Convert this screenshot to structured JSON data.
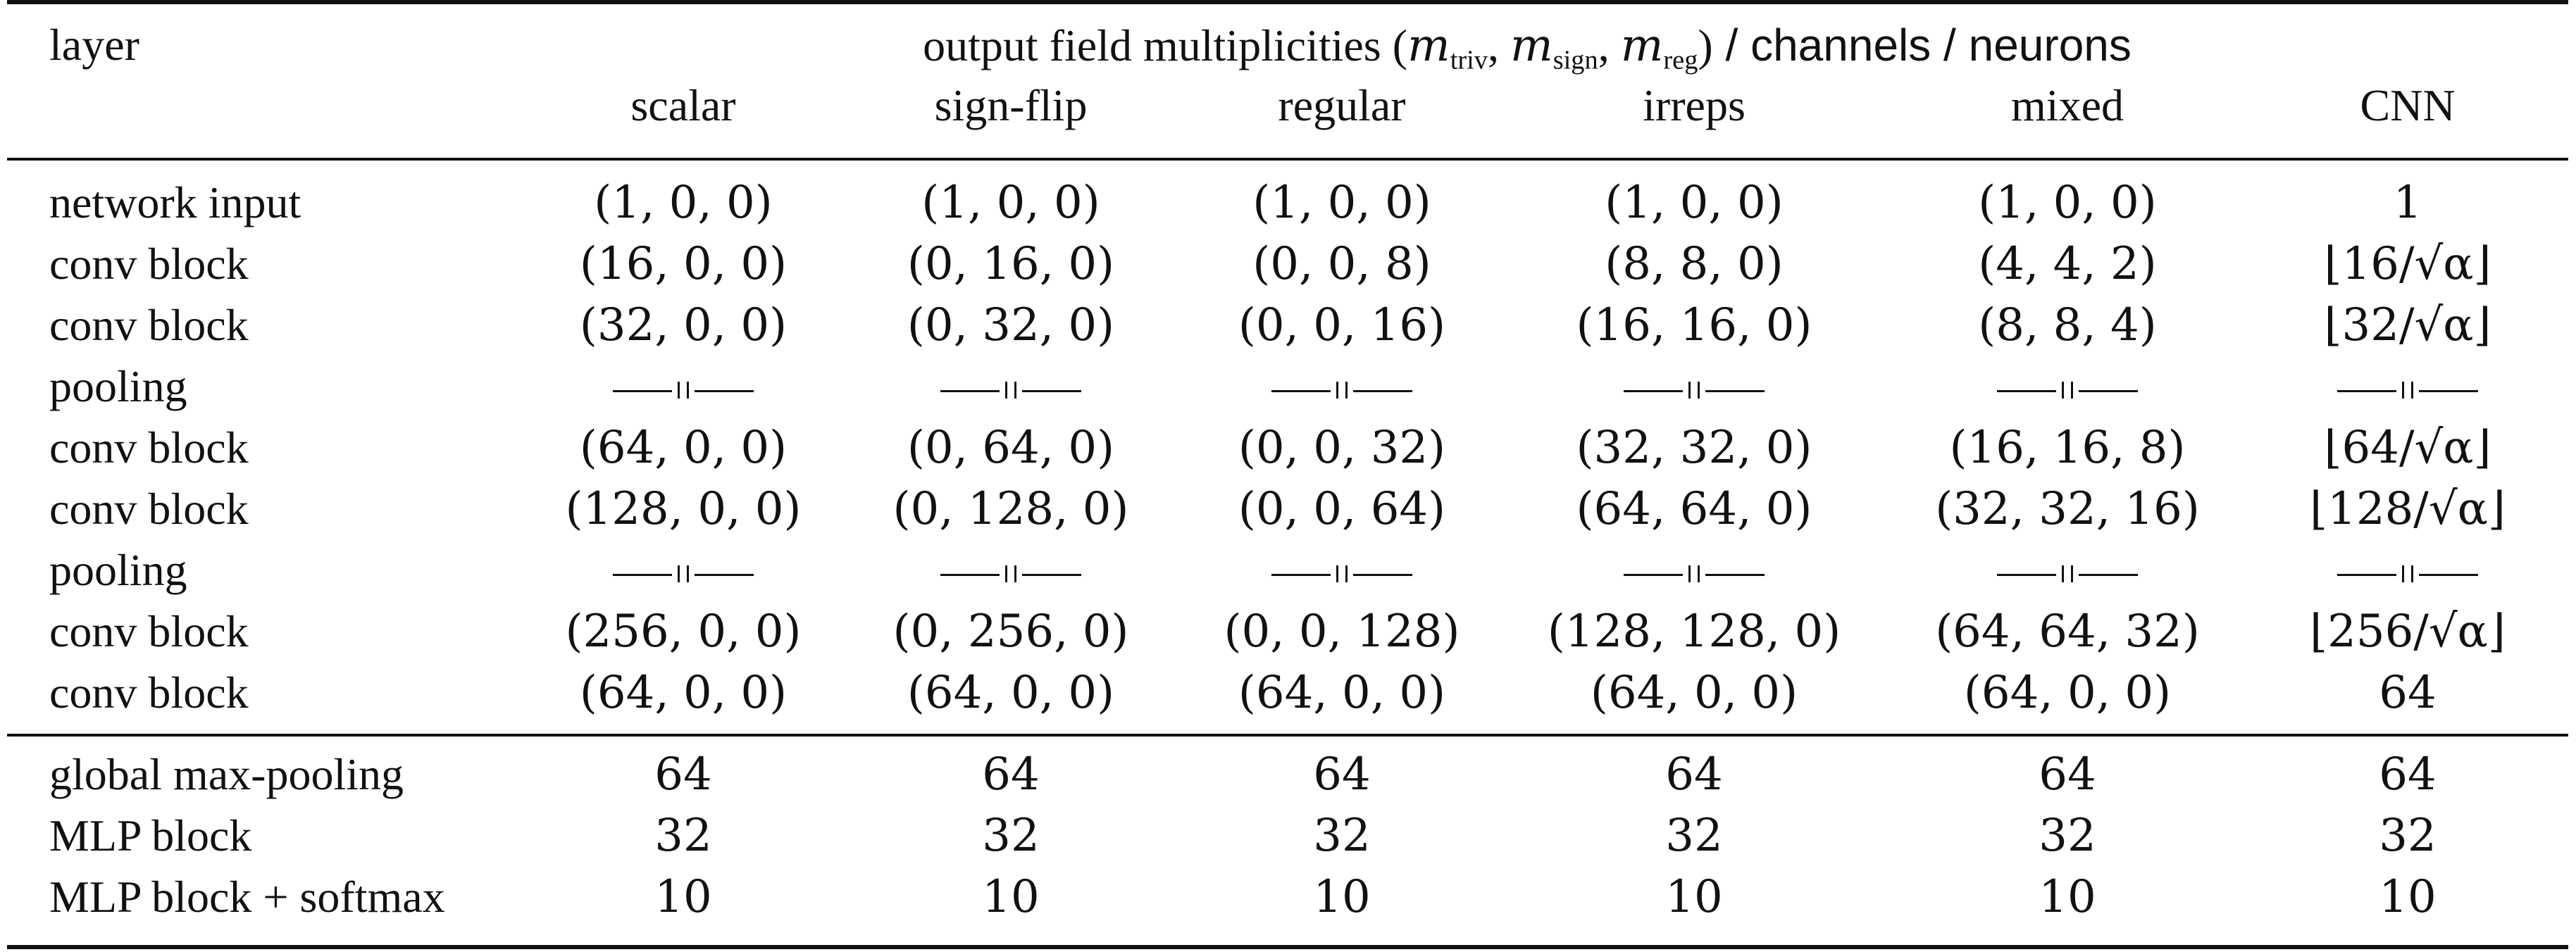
{
  "table": {
    "header": {
      "layer_label": "layer",
      "spanner_prefix": "output field multiplicities (",
      "spanner_m1": "m",
      "spanner_m1_sub": "triv",
      "spanner_sep1": ", ",
      "spanner_m2": "m",
      "spanner_m2_sub": "sign",
      "spanner_sep2": ", ",
      "spanner_m3": "m",
      "spanner_m3_sub": "reg",
      "spanner_close": ")",
      "spanner_suffix": " / channels / neurons",
      "columns": [
        "scalar",
        "sign-flip",
        "regular",
        "irreps",
        "mixed",
        "CNN"
      ]
    },
    "rows_conv": [
      {
        "layer": "network input",
        "cells": [
          "(1, 0, 0)",
          "(1, 0, 0)",
          "(1, 0, 0)",
          "(1, 0, 0)",
          "(1, 0, 0)",
          "1"
        ]
      },
      {
        "layer": "conv block",
        "cells": [
          "(16, 0, 0)",
          "(0, 16, 0)",
          "(0, 0, 8)",
          "(8, 8, 0)",
          "(4, 4, 2)",
          "⌊16/√α⌋"
        ],
        "cnn_num": "16"
      },
      {
        "layer": "conv block",
        "cells": [
          "(32, 0, 0)",
          "(0, 32, 0)",
          "(0, 0, 16)",
          "(16, 16, 0)",
          "(8, 8, 4)",
          "⌊32/√α⌋"
        ],
        "cnn_num": "32"
      },
      {
        "layer": "pooling",
        "ditto": true
      },
      {
        "layer": "conv block",
        "cells": [
          "(64, 0, 0)",
          "(0, 64, 0)",
          "(0, 0, 32)",
          "(32, 32, 0)",
          "(16, 16, 8)",
          "⌊64/√α⌋"
        ],
        "cnn_num": "64"
      },
      {
        "layer": "conv block",
        "cells": [
          "(128, 0, 0)",
          "(0, 128, 0)",
          "(0, 0, 64)",
          "(64, 64, 0)",
          "(32, 32, 16)",
          "⌊128/√α⌋"
        ],
        "cnn_num": "128"
      },
      {
        "layer": "pooling",
        "ditto": true
      },
      {
        "layer": "conv block",
        "cells": [
          "(256, 0, 0)",
          "(0, 256, 0)",
          "(0, 0, 128)",
          "(128, 128, 0)",
          "(64, 64, 32)",
          "⌊256/√α⌋"
        ],
        "cnn_num": "256"
      },
      {
        "layer": "conv block",
        "cells": [
          "(64, 0, 0)",
          "(64, 0, 0)",
          "(64, 0, 0)",
          "(64, 0, 0)",
          "(64, 0, 0)",
          "64"
        ]
      }
    ],
    "rows_head": [
      {
        "layer": "global max-pooling",
        "cells": [
          "64",
          "64",
          "64",
          "64",
          "64",
          "64"
        ]
      },
      {
        "layer": "MLP block",
        "cells": [
          "32",
          "32",
          "32",
          "32",
          "32",
          "32"
        ]
      },
      {
        "layer": "MLP block + softmax",
        "cells": [
          "10",
          "10",
          "10",
          "10",
          "10",
          "10"
        ]
      }
    ]
  }
}
